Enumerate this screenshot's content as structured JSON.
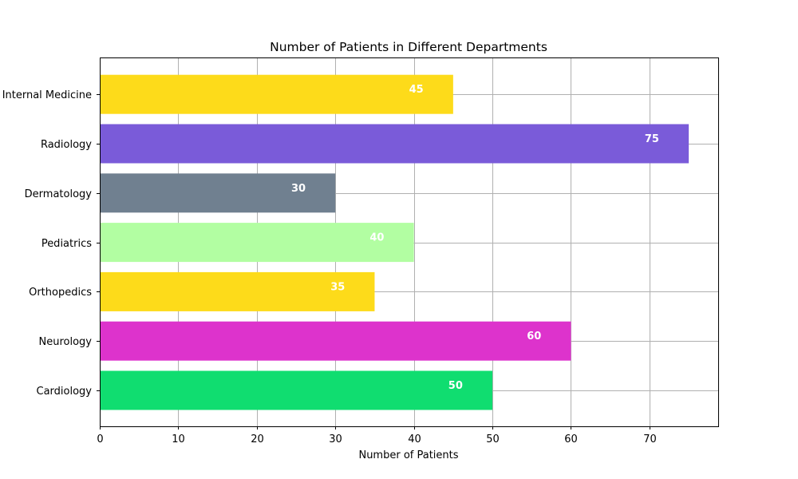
{
  "chart_data": {
    "type": "bar",
    "orientation": "horizontal",
    "title": "Number of Patients in Different Departments",
    "xlabel": "Number of Patients",
    "ylabel": "",
    "xlim": [
      0,
      78.75
    ],
    "xticks": [
      0,
      10,
      20,
      30,
      40,
      50,
      60,
      70
    ],
    "grid": true,
    "categories": [
      "Cardiology",
      "Neurology",
      "Orthopedics",
      "Pediatrics",
      "Dermatology",
      "Radiology",
      "Internal Medicine"
    ],
    "values": [
      50,
      60,
      35,
      40,
      30,
      75,
      45
    ],
    "colors": [
      "#10dd70",
      "#dd33cc",
      "#fddb1a",
      "#b2fea2",
      "#708090",
      "#7a5bd9",
      "#fddb1a"
    ],
    "data_labels": [
      "50",
      "60",
      "35",
      "40",
      "30",
      "75",
      "45"
    ]
  }
}
